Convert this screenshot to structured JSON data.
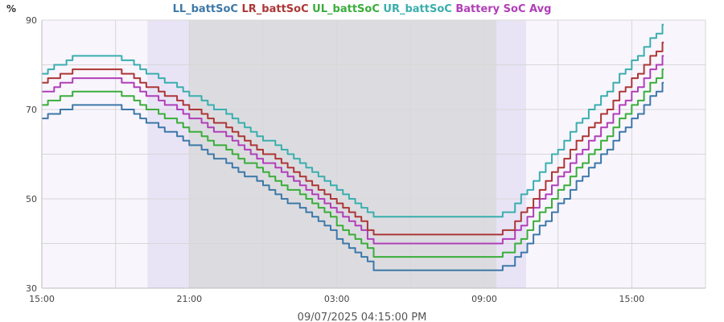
{
  "chart_data": {
    "type": "line",
    "ylabel": "%",
    "footer": "09/07/2025 04:15:00 PM",
    "ylim": [
      30,
      90
    ],
    "y_ticks": [
      30,
      50,
      70,
      90
    ],
    "x_ticks": [
      "15:00",
      "21:00",
      "03:00",
      "09:00",
      "15:00"
    ],
    "grid": true,
    "legend_position": "top-center",
    "colors": {
      "plot_background": "#f8f5fd",
      "night_shade": "#dcdce0",
      "twilight_shade": "#e8e4f6",
      "grid": "#d7d7d7",
      "axis": "#bdbdbd"
    },
    "series": [
      {
        "name": "LL_battSoC",
        "color": "#3d78a8",
        "points": [
          [
            0,
            68
          ],
          [
            1.3,
            71
          ],
          [
            3,
            71
          ],
          [
            7.5,
            58
          ],
          [
            11,
            46
          ],
          [
            13.6,
            34
          ],
          [
            18.3,
            34
          ],
          [
            19,
            35
          ],
          [
            21.5,
            52
          ],
          [
            25.3,
            76
          ]
        ]
      },
      {
        "name": "LR_battSoC",
        "color": "#ad3636",
        "points": [
          [
            0,
            76
          ],
          [
            1.3,
            79
          ],
          [
            3,
            79
          ],
          [
            7.5,
            66
          ],
          [
            11,
            53
          ],
          [
            13.6,
            42
          ],
          [
            18.3,
            42
          ],
          [
            19,
            43
          ],
          [
            21.5,
            61
          ],
          [
            25.3,
            85
          ]
        ]
      },
      {
        "name": "UL_battSoC",
        "color": "#3aad3a",
        "points": [
          [
            0,
            71
          ],
          [
            1.3,
            74
          ],
          [
            3,
            74
          ],
          [
            7.5,
            61
          ],
          [
            11,
            49
          ],
          [
            13.6,
            37
          ],
          [
            18.3,
            37
          ],
          [
            19,
            38
          ],
          [
            21.5,
            55
          ],
          [
            25.3,
            79
          ]
        ]
      },
      {
        "name": "UR_battSoC",
        "color": "#3aaeae",
        "points": [
          [
            0,
            78
          ],
          [
            1.3,
            82
          ],
          [
            3,
            82
          ],
          [
            7.5,
            69
          ],
          [
            11,
            56
          ],
          [
            13.6,
            46
          ],
          [
            18.3,
            46
          ],
          [
            19,
            47
          ],
          [
            21.5,
            65
          ],
          [
            25.3,
            89
          ]
        ]
      },
      {
        "name": "Battery SoC Avg",
        "color": "#b03fb8",
        "points": [
          [
            0,
            73.5
          ],
          [
            1.3,
            77
          ],
          [
            3,
            77
          ],
          [
            7.5,
            64
          ],
          [
            11,
            51
          ],
          [
            13.6,
            40
          ],
          [
            18.3,
            40
          ],
          [
            19,
            41
          ],
          [
            21.5,
            58
          ],
          [
            25.3,
            82
          ]
        ]
      }
    ],
    "night_band": [
      6,
      18.5
    ],
    "twilight_bands": [
      [
        4.3,
        6
      ],
      [
        18.5,
        19.7
      ]
    ]
  }
}
